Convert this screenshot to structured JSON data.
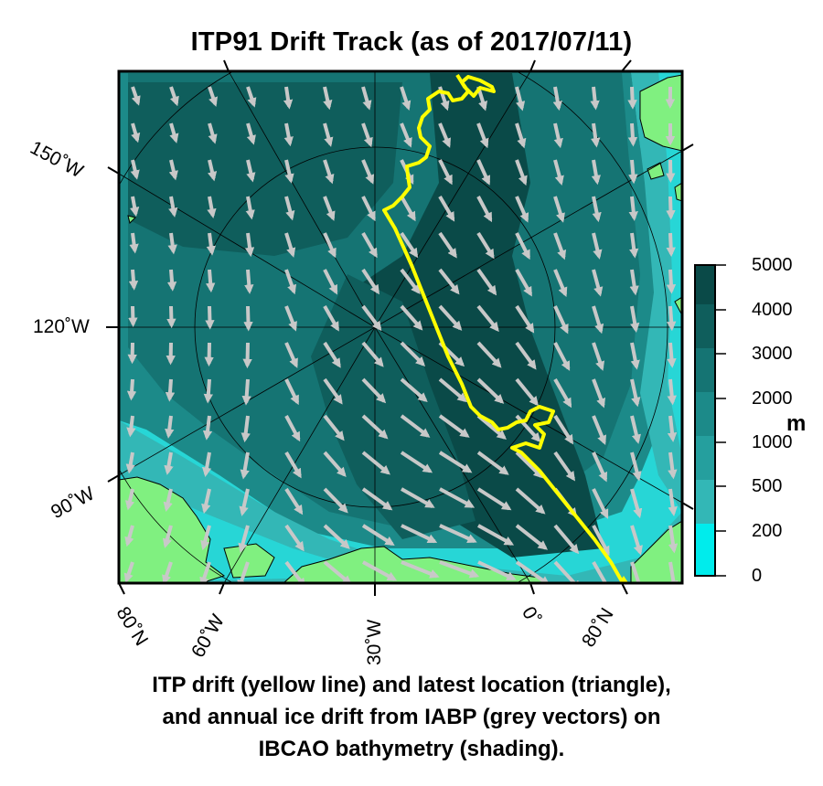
{
  "title": "ITP91 Drift Track (as of 2017/07/11)",
  "axis_labels": {
    "lon_150W": "150˚W",
    "lon_120W": "120˚W",
    "lon_90W": "90˚W",
    "lat_80N_left": "80˚N",
    "lon_60W": "60˚W",
    "lon_30W": "30˚W",
    "lon_0": "0˚",
    "lat_80N_right": "80˚N"
  },
  "colorbar": {
    "unit": "m",
    "ticks": [
      "5000",
      "4000",
      "3000",
      "2000",
      "1000",
      "500",
      "200",
      "0"
    ],
    "colors": [
      "#0a4a48",
      "#0f5e5c",
      "#157473",
      "#1c8a89",
      "#259f9e",
      "#33b7b6",
      "#27d6d6",
      "#00ecec"
    ]
  },
  "caption_lines": [
    "ITP drift (yellow line) and latest location (triangle),",
    "and annual ice drift from IABP (grey vectors) on",
    "IBCAO bathymetry (shading)."
  ],
  "colors": {
    "track": "#ffff00",
    "vectors": "#c8c8c8",
    "land": "#80f080",
    "frame": "#000000"
  }
}
